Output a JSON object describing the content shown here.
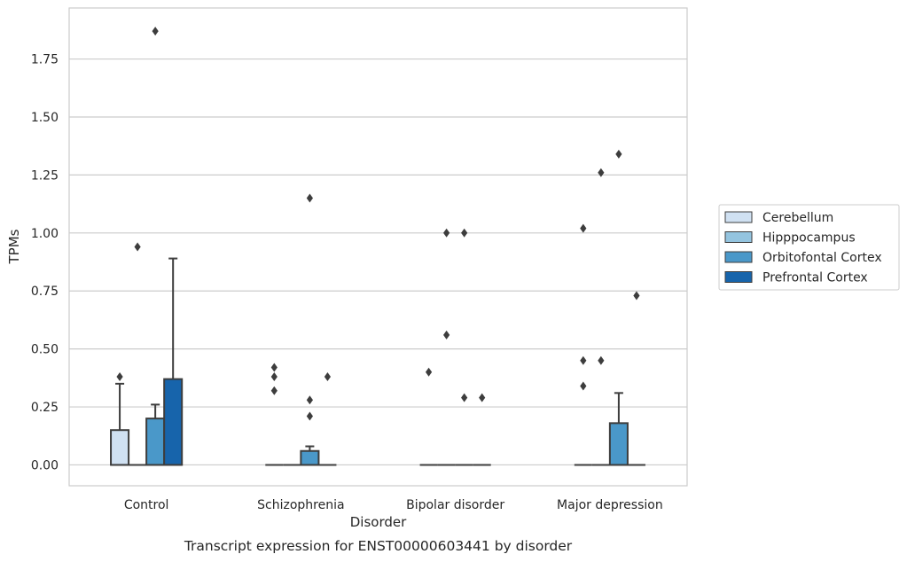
{
  "caption": "Transcript expression for ENST00000603441 by disorder",
  "chart_data": {
    "type": "box",
    "xlabel": "Disorder",
    "ylabel": "TPMs",
    "categories": [
      "Control",
      "Schizophrenia",
      "Bipolar disorder",
      "Major depression"
    ],
    "ylim": [
      -0.09,
      1.97
    ],
    "yticks": [
      0.0,
      0.25,
      0.5,
      0.75,
      1.0,
      1.25,
      1.5,
      1.75
    ],
    "ytick_labels": [
      "0.00",
      "0.25",
      "0.50",
      "0.75",
      "1.00",
      "1.25",
      "1.50",
      "1.75"
    ],
    "grid": "horizontal",
    "legend_position": "right",
    "series": [
      {
        "name": "Cerebellum",
        "color": "#d0e1f2",
        "boxes": [
          {
            "q1": 0,
            "median": 0,
            "q3": 0.15,
            "whisker_low": 0,
            "whisker_high": 0.35,
            "outliers": [
              0.38
            ]
          },
          {
            "q1": 0,
            "median": 0,
            "q3": 0,
            "whisker_low": 0,
            "whisker_high": 0,
            "outliers": [
              0.32,
              0.38,
              0.42
            ]
          },
          {
            "q1": 0,
            "median": 0,
            "q3": 0,
            "whisker_low": 0,
            "whisker_high": 0,
            "outliers": [
              0.4
            ]
          },
          {
            "q1": 0,
            "median": 0,
            "q3": 0,
            "whisker_low": 0,
            "whisker_high": 0,
            "outliers": [
              0.34,
              0.45,
              1.02
            ]
          }
        ]
      },
      {
        "name": "Hipppocampus",
        "color": "#94c4df",
        "boxes": [
          {
            "q1": 0,
            "median": 0,
            "q3": 0,
            "whisker_low": 0,
            "whisker_high": 0,
            "outliers": [
              0.94
            ]
          },
          {
            "q1": 0,
            "median": 0,
            "q3": 0,
            "whisker_low": 0,
            "whisker_high": 0,
            "outliers": []
          },
          {
            "q1": 0,
            "median": 0,
            "q3": 0,
            "whisker_low": 0,
            "whisker_high": 0,
            "outliers": [
              0.56,
              1.0
            ]
          },
          {
            "q1": 0,
            "median": 0,
            "q3": 0,
            "whisker_low": 0,
            "whisker_high": 0,
            "outliers": [
              0.45,
              1.26
            ]
          }
        ]
      },
      {
        "name": "Orbitofontal Cortex",
        "color": "#4a98c9",
        "boxes": [
          {
            "q1": 0,
            "median": 0,
            "q3": 0.2,
            "whisker_low": 0,
            "whisker_high": 0.26,
            "outliers": [
              1.87
            ]
          },
          {
            "q1": 0,
            "median": 0,
            "q3": 0.06,
            "whisker_low": 0,
            "whisker_high": 0.08,
            "outliers": [
              0.21,
              0.28,
              1.15
            ]
          },
          {
            "q1": 0,
            "median": 0,
            "q3": 0,
            "whisker_low": 0,
            "whisker_high": 0,
            "outliers": [
              0.29,
              1.0
            ]
          },
          {
            "q1": 0,
            "median": 0,
            "q3": 0.18,
            "whisker_low": 0,
            "whisker_high": 0.31,
            "outliers": [
              1.34
            ]
          }
        ]
      },
      {
        "name": "Prefrontal Cortex",
        "color": "#1764ab",
        "boxes": [
          {
            "q1": 0,
            "median": 0,
            "q3": 0.37,
            "whisker_low": 0,
            "whisker_high": 0.89,
            "outliers": []
          },
          {
            "q1": 0,
            "median": 0,
            "q3": 0,
            "whisker_low": 0,
            "whisker_high": 0,
            "outliers": [
              0.38
            ]
          },
          {
            "q1": 0,
            "median": 0,
            "q3": 0,
            "whisker_low": 0,
            "whisker_high": 0,
            "outliers": [
              0.29
            ]
          },
          {
            "q1": 0,
            "median": 0,
            "q3": 0,
            "whisker_low": 0,
            "whisker_high": 0,
            "outliers": [
              0.73
            ]
          }
        ]
      }
    ]
  }
}
